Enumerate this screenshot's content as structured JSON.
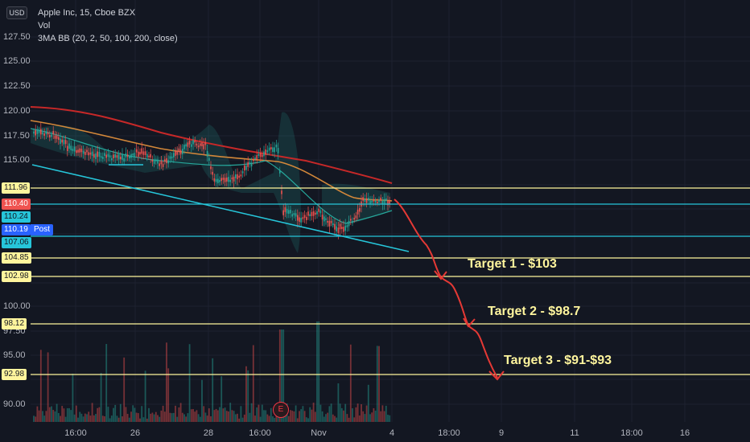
{
  "legend": {
    "currency": "USD",
    "symbol_line": "Apple Inc, 15, Cboe BZX",
    "vol_label": "Vol",
    "indicator_line": "3MA BB (20, 2, 50, 100, 200, close)"
  },
  "y_axis": {
    "ticks": [
      "127.50",
      "125.00",
      "122.50",
      "120.00",
      "117.50",
      "115.00",
      "100.00",
      "97.50",
      "95.00",
      "90.00"
    ]
  },
  "price_boxes": [
    {
      "label": "111.96",
      "bg": "#fff59d",
      "fg": "#131722"
    },
    {
      "label": "110.40",
      "bg": "#ef5350",
      "fg": "#ffffff"
    },
    {
      "label": "110.24",
      "bg": "#26c6da",
      "fg": "#131722"
    },
    {
      "label": "110.19",
      "bg": "#2962ff",
      "fg": "#ffffff"
    },
    {
      "label": "107.06",
      "bg": "#26c6da",
      "fg": "#131722"
    },
    {
      "label": "104.85",
      "bg": "#fff59d",
      "fg": "#131722"
    },
    {
      "label": "102.98",
      "bg": "#fff59d",
      "fg": "#131722"
    },
    {
      "label": "98.12",
      "bg": "#fff59d",
      "fg": "#131722"
    },
    {
      "label": "92.98",
      "bg": "#fff59d",
      "fg": "#131722"
    }
  ],
  "post_label": "Post",
  "x_axis": {
    "ticks": [
      "16:00",
      "26",
      "28",
      "16:00",
      "Nov",
      "4",
      "18:00",
      "9",
      "11",
      "18:00",
      "16"
    ]
  },
  "targets": [
    {
      "text": "Target 1 - $103"
    },
    {
      "text": "Target 2 - $98.7"
    },
    {
      "text": "Target 3 - $91-$93"
    }
  ],
  "event_badge": "E",
  "colors": {
    "background": "#131722",
    "level_yellow": "#fff59d",
    "level_cyan": "#26c6da",
    "projection_red": "#e53935",
    "ma_red": "#c62828",
    "ma_orange": "#d4883a",
    "ma_teal": "#26a69a",
    "up_candle": "#26a69a",
    "down_candle": "#ef5350"
  }
}
